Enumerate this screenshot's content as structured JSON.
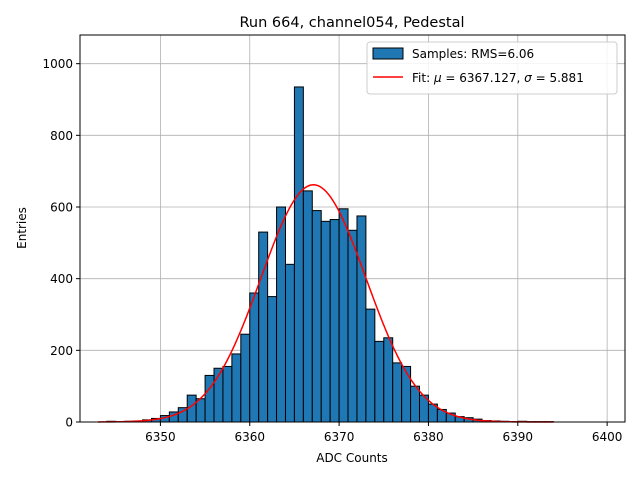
{
  "chart_data": {
    "type": "bar",
    "title": "Run 664, channel054, Pedestal",
    "xlabel": "ADC Counts",
    "ylabel": "Entries",
    "xlim": [
      6341,
      6402
    ],
    "ylim": [
      0,
      1080
    ],
    "xticks": [
      6350,
      6360,
      6370,
      6380,
      6390,
      6400
    ],
    "yticks": [
      0,
      200,
      400,
      600,
      800,
      1000
    ],
    "grid": true,
    "legend_position": "top-right",
    "histogram": {
      "name": "Samples: RMS=6.06",
      "color": "#1f77b4",
      "bin_width": 1,
      "bin_starts": [
        6344,
        6345,
        6346,
        6347,
        6348,
        6349,
        6350,
        6351,
        6352,
        6353,
        6354,
        6355,
        6356,
        6357,
        6358,
        6359,
        6360,
        6361,
        6362,
        6363,
        6364,
        6365,
        6366,
        6367,
        6368,
        6369,
        6370,
        6371,
        6372,
        6373,
        6374,
        6375,
        6376,
        6377,
        6378,
        6379,
        6380,
        6381,
        6382,
        6383,
        6384,
        6385,
        6386,
        6387,
        6388,
        6389,
        6390,
        6391,
        6392,
        6393
      ],
      "counts": [
        2,
        1,
        2,
        3,
        6,
        10,
        18,
        28,
        40,
        75,
        65,
        130,
        150,
        155,
        190,
        245,
        360,
        530,
        350,
        600,
        440,
        935,
        645,
        590,
        560,
        565,
        595,
        535,
        575,
        315,
        225,
        235,
        165,
        155,
        100,
        75,
        50,
        35,
        25,
        15,
        12,
        8,
        4,
        3,
        2,
        1,
        2,
        1,
        1,
        1
      ]
    },
    "fit": {
      "name_prefix": "Fit: ",
      "mu_symbol": "μ",
      "sigma_symbol": "σ",
      "mu": 6367.127,
      "sigma": 5.881,
      "mu_text": "6367.127",
      "sigma_text": "5.881",
      "amplitude": 662,
      "x_range": [
        6343,
        6394
      ],
      "color": "#ff0000"
    }
  }
}
